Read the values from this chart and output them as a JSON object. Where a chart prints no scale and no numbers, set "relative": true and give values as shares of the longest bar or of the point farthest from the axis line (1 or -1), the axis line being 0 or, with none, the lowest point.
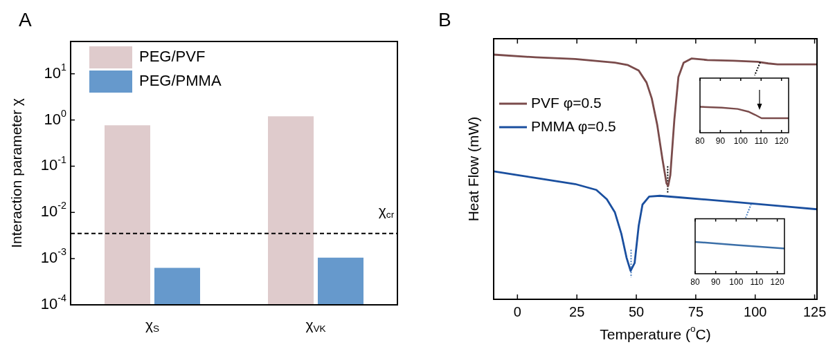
{
  "chart_data": [
    {
      "type": "bar",
      "title": "A",
      "ylabel": "Interaction parameter χ",
      "categories": [
        "χ$_{S}$",
        "χ$_{VK}$"
      ],
      "series": [
        {
          "name": "PEG/PVF",
          "color": "#dfcbcc",
          "values": [
            0.77,
            1.2
          ]
        },
        {
          "name": "PEG/PMMA",
          "color": "#6699cc",
          "values": [
            0.00063,
            0.00105
          ]
        }
      ],
      "log": true,
      "ylim": [
        0.0001,
        50
      ],
      "yticks": [
        {
          "value": 0.0001,
          "label": "10$^{-4}$"
        },
        {
          "value": 0.001,
          "label": "10$^{-3}$"
        },
        {
          "value": 0.01,
          "label": "10$^{-2}$"
        },
        {
          "value": 0.1,
          "label": "10$^{-1}$"
        },
        {
          "value": 1,
          "label": "10$^{0}$"
        },
        {
          "value": 10,
          "label": "10$^{1}$"
        }
      ],
      "ref_lines": [
        {
          "axis": "y",
          "value": 0.0035,
          "label": "χ$_{cr}$",
          "line_style": "dashed",
          "color": "#000000"
        }
      ],
      "legend": "top left"
    },
    {
      "type": "line",
      "title": "B",
      "xlabel": "Temperature ($^{o}$C)",
      "ylabel": "Heat Flow (mW)",
      "relative": true,
      "xlim": [
        -10,
        126
      ],
      "xticks": [
        0,
        25,
        50,
        75,
        100,
        125
      ],
      "series": [
        {
          "name": "PVF φ=0.5",
          "color": "#7a4b4b",
          "x": [
            -10,
            7.6,
            24.3,
            41,
            46.5,
            51,
            54.3,
            56.5,
            58.8,
            61,
            62.7,
            63.4,
            64.3,
            66,
            67.7,
            69.9,
            73.2,
            79.9,
            91,
            101,
            105.5,
            109.4,
            126
          ],
          "values": [
            1,
            0.989,
            0.982,
            0.967,
            0.957,
            0.935,
            0.886,
            0.821,
            0.713,
            0.572,
            0.474,
            0.463,
            0.507,
            0.734,
            0.908,
            0.967,
            0.984,
            0.978,
            0.975,
            0.971,
            0.964,
            0.96,
            0.96
          ]
        },
        {
          "name": "PMMA φ=0.5",
          "color": "#1a4f9f",
          "x": [
            -10,
            7.6,
            24.3,
            33.2,
            37.6,
            41,
            43.7,
            45.9,
            47.6,
            49.3,
            51,
            52.6,
            55.4,
            59.9,
            68.8,
            91,
            113.3,
            126
          ],
          "values": [
            0.523,
            0.496,
            0.471,
            0.447,
            0.409,
            0.355,
            0.268,
            0.17,
            0.116,
            0.149,
            0.3,
            0.387,
            0.42,
            0.423,
            0.416,
            0.398,
            0.379,
            0.368
          ]
        },
        {
          "color": "#000000",
          "line_style": "dotted",
          "x": [
            63.2,
            63.2
          ],
          "values": [
            0.544,
            0.436
          ]
        },
        {
          "color": "#4a7fc0",
          "line_style": "dotted",
          "x": [
            47.8,
            47.8
          ],
          "values": [
            0.203,
            0.089
          ]
        }
      ],
      "legend": "left"
    },
    {
      "type": "line",
      "relative": true,
      "xlim": [
        80,
        123.5
      ],
      "xticks": [
        80,
        90,
        100,
        110,
        120
      ],
      "series": [
        {
          "color": "#7a4b4b",
          "x": [
            80,
            90.7,
            98.5,
            103.7,
            107,
            110.2,
            123.5
          ],
          "values": [
            1,
            0.969,
            0.918,
            0.816,
            0.694,
            0.561,
            0.561
          ]
        }
      ]
    },
    {
      "type": "line",
      "relative": true,
      "xlim": [
        80,
        123.5
      ],
      "xticks": [
        80,
        90,
        100,
        110,
        120
      ],
      "series": [
        {
          "color": "#3b6fa8",
          "x": [
            80,
            100,
            123.5
          ],
          "values": [
            1,
            0.9,
            0.79
          ]
        }
      ]
    }
  ]
}
